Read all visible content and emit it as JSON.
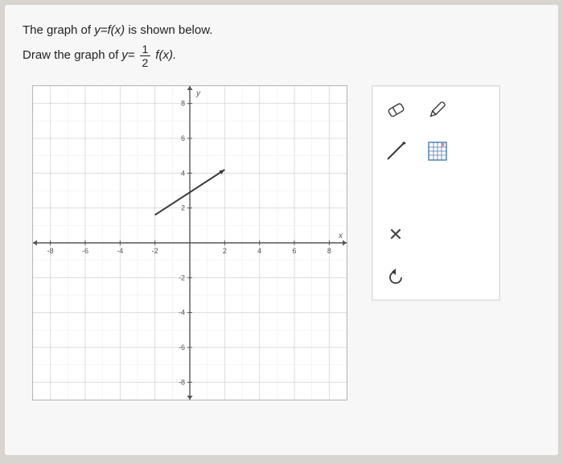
{
  "prompt": {
    "line1_a": "The graph of ",
    "line1_b": "y=f(x)",
    "line1_c": " is shown below.",
    "line2_a": "Draw the graph of ",
    "line2_b": "y=",
    "frac_num": "1",
    "frac_den": "2",
    "line2_c": "f(x)."
  },
  "graph": {
    "xmin": -9,
    "xmax": 9,
    "ymin": -9,
    "ymax": 9,
    "x_tick_step": 2,
    "y_tick_step": 2,
    "x_tick_labels": [
      -8,
      -6,
      -4,
      -2,
      2,
      4,
      6,
      8
    ],
    "y_tick_labels": [
      -8,
      -6,
      -4,
      -2,
      2,
      4,
      6,
      8
    ],
    "axis_color": "#555555",
    "grid_color": "#d6d6d6",
    "minor_grid_color": "#ececec",
    "tick_font_size": 9,
    "x_axis_label": "x",
    "y_axis_label": "y",
    "line_color": "#3a3a3a",
    "line_width": 2,
    "line_points": [
      [
        -2,
        1.6
      ],
      [
        2,
        4.2
      ]
    ],
    "arrow_size": 5
  },
  "tools": {
    "eraser_name": "eraser-icon",
    "pen_name": "pen-icon",
    "line_name": "line-tool-icon",
    "graphpaper_name": "graph-paper-icon",
    "close_label": "✕",
    "undo_name": "undo-icon",
    "icon_stroke": "#3a3a3a",
    "icon_accent": "#d44",
    "icon_blue": "#4a7ab5"
  }
}
